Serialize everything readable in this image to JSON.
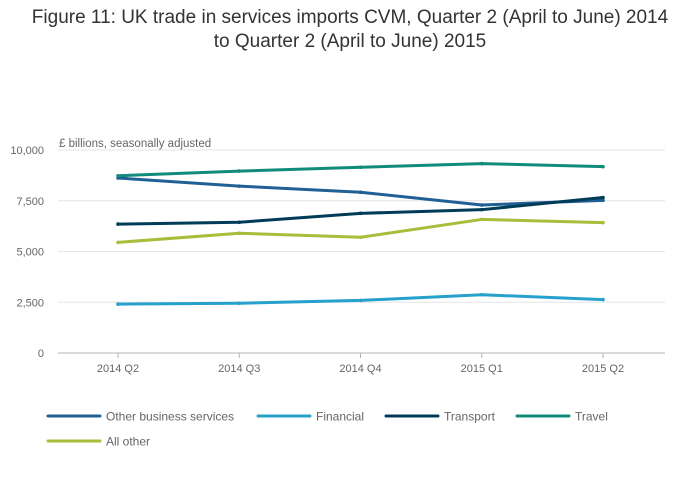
{
  "title_line1": "Figure 11: UK trade in services imports CVM, Quarter 2 (April to June) 2014",
  "title_line2": "to Quarter 2 (April to June) 2015",
  "chart_data": {
    "type": "line",
    "title": "Figure 11: UK trade in services imports CVM, Quarter 2 (April to June) 2014 to Quarter 2 (April to June) 2015",
    "ylabel": "£ billions, seasonally adjusted",
    "categories": [
      "2014 Q2",
      "2014 Q3",
      "2014 Q4",
      "2015 Q1",
      "2015 Q2"
    ],
    "ylim": [
      0,
      10000
    ],
    "yticks": [
      0,
      2500,
      5000,
      7500,
      10000
    ],
    "ytick_labels": [
      "0",
      "2,500",
      "5,000",
      "7,500",
      "10,000"
    ],
    "grid": true,
    "legend_position": "bottom",
    "series": [
      {
        "name": "Other business services",
        "color": "#206095",
        "values": [
          8620,
          8220,
          7920,
          7290,
          7520
        ]
      },
      {
        "name": "Financial",
        "color": "#27A0CC",
        "values": [
          2410,
          2450,
          2590,
          2870,
          2630
        ]
      },
      {
        "name": "Transport",
        "color": "#003C57",
        "values": [
          6350,
          6440,
          6880,
          7060,
          7660
        ]
      },
      {
        "name": "Travel",
        "color": "#118C7B",
        "values": [
          8730,
          8960,
          9150,
          9330,
          9180
        ]
      },
      {
        "name": "All other",
        "color": "#A8BD3A",
        "values": [
          5450,
          5900,
          5700,
          6580,
          6420
        ]
      }
    ]
  }
}
